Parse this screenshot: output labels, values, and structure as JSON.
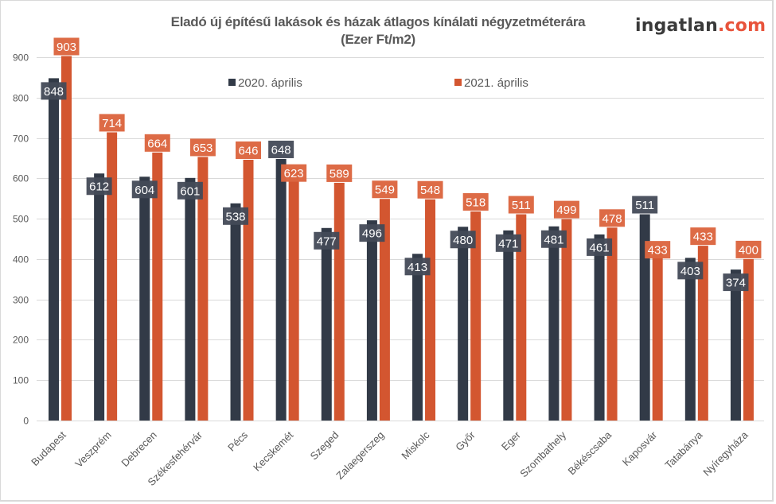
{
  "header": {
    "title_line1": "Eladó új építésű lakások és házak átlagos kínálati négyzetméterára",
    "title_line2": "(Ezer Ft/m2)",
    "logo_main": "ingatlan",
    "logo_suffix": ".com"
  },
  "colors": {
    "series_2020": "#323a47",
    "series_2021": "#d35630",
    "label_2020_bg": "#434a57",
    "label_2021_bg": "#dc6640",
    "grid": "#d9d9d9",
    "text": "#595959",
    "logo_accent": "#e8533b"
  },
  "chart_data": {
    "type": "bar",
    "title": "Eladó új építésű lakások és házak átlagos kínálati négyzetméterára (Ezer Ft/m2)",
    "xlabel": "",
    "ylabel": "",
    "ylim": [
      0,
      900
    ],
    "yticks": [
      0,
      100,
      200,
      300,
      400,
      500,
      600,
      700,
      800,
      900
    ],
    "grid": true,
    "legend_position": "top",
    "categories": [
      "Budapest",
      "Veszprém",
      "Debrecen",
      "Székesfehérvár",
      "Pécs",
      "Kecskemét",
      "Szeged",
      "Zalaegerszeg",
      "Miskolc",
      "Győr",
      "Eger",
      "Szombathely",
      "Békéscsaba",
      "Kaposvár",
      "Tatabánya",
      "Nyíregyháza"
    ],
    "series": [
      {
        "name": "2020. április",
        "values": [
          848,
          612,
          604,
          601,
          538,
          648,
          477,
          496,
          413,
          480,
          471,
          481,
          461,
          511,
          403,
          374
        ]
      },
      {
        "name": "2021. április",
        "values": [
          903,
          714,
          664,
          653,
          646,
          623,
          589,
          549,
          548,
          518,
          511,
          499,
          478,
          433,
          433,
          400
        ]
      }
    ]
  }
}
